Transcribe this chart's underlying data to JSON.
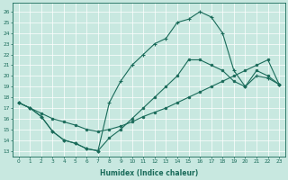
{
  "xlabel": "Humidex (Indice chaleur)",
  "ylabel": "",
  "bg_color": "#c8e8e0",
  "line_color": "#1a6b5a",
  "xlim": [
    -0.5,
    23.5
  ],
  "ylim": [
    12.5,
    26.8
  ],
  "xticks": [
    0,
    1,
    2,
    3,
    4,
    5,
    6,
    7,
    8,
    9,
    10,
    11,
    12,
    13,
    14,
    15,
    16,
    17,
    18,
    19,
    20,
    21,
    22,
    23
  ],
  "yticks": [
    13,
    14,
    15,
    16,
    17,
    18,
    19,
    20,
    21,
    22,
    23,
    24,
    25,
    26
  ],
  "line1_x": [
    0,
    1,
    2,
    3,
    4,
    5,
    6,
    7,
    8,
    9,
    10,
    11,
    12,
    13,
    14,
    15,
    16,
    17,
    18,
    19,
    20,
    21,
    22,
    23
  ],
  "line1_y": [
    17.5,
    17.0,
    16.2,
    14.8,
    14.0,
    13.7,
    13.2,
    13.0,
    14.2,
    15.0,
    16.0,
    17.0,
    18.0,
    19.0,
    20.0,
    21.5,
    21.5,
    21.0,
    20.5,
    19.5,
    19.0,
    20.5,
    20.0,
    19.2
  ],
  "line2_x": [
    0,
    1,
    2,
    3,
    4,
    5,
    6,
    7,
    8,
    9,
    10,
    11,
    12,
    13,
    14,
    15,
    16,
    17,
    18,
    19,
    20,
    21,
    22,
    23
  ],
  "line2_y": [
    17.5,
    17.0,
    16.5,
    16.0,
    15.7,
    15.4,
    15.0,
    14.8,
    15.0,
    15.3,
    15.7,
    16.2,
    16.6,
    17.0,
    17.5,
    18.0,
    18.5,
    19.0,
    19.5,
    20.0,
    20.5,
    21.0,
    21.5,
    19.2
  ],
  "line3_x": [
    0,
    1,
    2,
    3,
    4,
    5,
    6,
    7,
    8,
    9,
    10,
    11,
    12,
    13,
    14,
    15,
    16,
    17,
    18,
    19,
    20,
    21,
    22,
    23
  ],
  "line3_y": [
    17.5,
    17.0,
    16.2,
    14.8,
    14.0,
    13.7,
    13.2,
    13.0,
    17.5,
    19.5,
    21.0,
    22.0,
    23.0,
    23.5,
    25.0,
    25.3,
    26.0,
    25.5,
    24.0,
    20.5,
    19.0,
    20.0,
    19.8,
    19.2
  ],
  "marker1": "o",
  "marker2": "o",
  "marker3": "+"
}
